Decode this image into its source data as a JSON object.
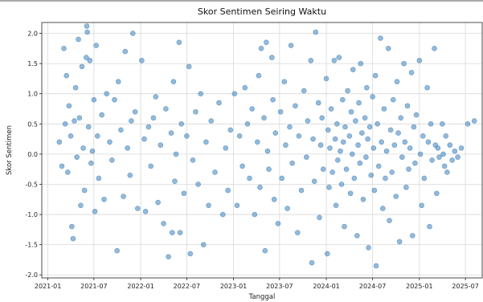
{
  "chart_data": {
    "type": "scatter",
    "title": "Skor Sentimen Seiring Waktu",
    "xlabel": "Tanggal",
    "ylabel": "Skor Sentimen",
    "xlim": [
      "2020-12-08",
      "2025-09-05"
    ],
    "ylim": [
      -2.05,
      2.18
    ],
    "x_ticks": [
      "2021-01",
      "2021-07",
      "2022-01",
      "2022-07",
      "2023-01",
      "2023-07",
      "2024-01",
      "2024-07",
      "2025-01",
      "2025-07"
    ],
    "y_ticks": [
      -2.0,
      -1.5,
      -1.0,
      -0.5,
      0.0,
      0.5,
      1.0,
      1.5,
      2.0
    ],
    "grid": true,
    "marker_color": "#4a8cc4",
    "frame_color": "#222222",
    "points": [
      [
        "2021-02-15",
        0.2
      ],
      [
        "2021-02-25",
        -0.2
      ],
      [
        "2021-03-05",
        1.75
      ],
      [
        "2021-03-10",
        0.5
      ],
      [
        "2021-03-15",
        1.3
      ],
      [
        "2021-03-20",
        -0.3
      ],
      [
        "2021-03-25",
        0.8
      ],
      [
        "2021-04-01",
        0.3
      ],
      [
        "2021-04-05",
        -1.2
      ],
      [
        "2021-04-10",
        -1.4
      ],
      [
        "2021-04-15",
        0.55
      ],
      [
        "2021-04-20",
        1.1
      ],
      [
        "2021-04-25",
        -0.05
      ],
      [
        "2021-05-01",
        1.9
      ],
      [
        "2021-05-05",
        0.6
      ],
      [
        "2021-05-10",
        -0.85
      ],
      [
        "2021-05-15",
        1.45
      ],
      [
        "2021-05-20",
        0.1
      ],
      [
        "2021-05-25",
        -0.6
      ],
      [
        "2021-06-01",
        1.6
      ],
      [
        "2021-06-03",
        2.12
      ],
      [
        "2021-06-05",
        2.02
      ],
      [
        "2021-06-10",
        0.45
      ],
      [
        "2021-06-15",
        1.55
      ],
      [
        "2021-06-20",
        -0.15
      ],
      [
        "2021-06-25",
        0.05
      ],
      [
        "2021-07-01",
        0.9
      ],
      [
        "2021-07-05",
        -0.95
      ],
      [
        "2021-07-10",
        1.8
      ],
      [
        "2021-07-15",
        0.3
      ],
      [
        "2021-07-20",
        -0.4
      ],
      [
        "2021-08-01",
        0.65
      ],
      [
        "2021-08-10",
        -0.75
      ],
      [
        "2021-08-20",
        1.0
      ],
      [
        "2021-09-01",
        0.2
      ],
      [
        "2021-09-10",
        -0.1
      ],
      [
        "2021-09-20",
        0.9
      ],
      [
        "2021-09-30",
        -1.6
      ],
      [
        "2021-10-05",
        1.2
      ],
      [
        "2021-10-15",
        0.4
      ],
      [
        "2021-10-25",
        -0.7
      ],
      [
        "2021-11-01",
        1.7
      ],
      [
        "2021-11-10",
        0.1
      ],
      [
        "2021-11-20",
        -0.35
      ],
      [
        "2021-11-25",
        0.55
      ],
      [
        "2021-12-01",
        2.0
      ],
      [
        "2021-12-10",
        0.7
      ],
      [
        "2021-12-20",
        -0.9
      ],
      [
        "2022-01-05",
        1.55
      ],
      [
        "2022-01-15",
        0.25
      ],
      [
        "2022-01-20",
        -0.95
      ],
      [
        "2022-02-01",
        0.45
      ],
      [
        "2022-02-10",
        -0.2
      ],
      [
        "2022-02-20",
        0.6
      ],
      [
        "2022-03-01",
        0.95
      ],
      [
        "2022-03-10",
        -0.8
      ],
      [
        "2022-03-20",
        0.15
      ],
      [
        "2022-04-01",
        -1.15
      ],
      [
        "2022-04-10",
        0.75
      ],
      [
        "2022-04-20",
        -1.7
      ],
      [
        "2022-05-01",
        0.35
      ],
      [
        "2022-05-05",
        -1.3
      ],
      [
        "2022-05-10",
        1.2
      ],
      [
        "2022-05-15",
        -0.45
      ],
      [
        "2022-05-20",
        0.0
      ],
      [
        "2022-06-01",
        1.85
      ],
      [
        "2022-06-05",
        -1.3
      ],
      [
        "2022-06-10",
        0.5
      ],
      [
        "2022-06-20",
        -0.65
      ],
      [
        "2022-07-01",
        0.3
      ],
      [
        "2022-07-10",
        1.45
      ],
      [
        "2022-07-15",
        -1.65
      ],
      [
        "2022-07-25",
        -0.1
      ],
      [
        "2022-08-05",
        0.7
      ],
      [
        "2022-08-15",
        -0.5
      ],
      [
        "2022-08-25",
        1.0
      ],
      [
        "2022-09-05",
        -1.5
      ],
      [
        "2022-09-15",
        0.2
      ],
      [
        "2022-09-25",
        -0.85
      ],
      [
        "2022-10-05",
        0.55
      ],
      [
        "2022-10-20",
        -0.3
      ],
      [
        "2022-11-05",
        0.85
      ],
      [
        "2022-11-20",
        -1.0
      ],
      [
        "2022-12-01",
        0.1
      ],
      [
        "2022-12-10",
        -0.6
      ],
      [
        "2022-12-20",
        0.4
      ],
      [
        "2023-01-05",
        1.0
      ],
      [
        "2023-01-15",
        -0.85
      ],
      [
        "2023-01-25",
        0.3
      ],
      [
        "2023-02-05",
        -0.2
      ],
      [
        "2023-02-15",
        1.1
      ],
      [
        "2023-02-25",
        0.5
      ],
      [
        "2023-03-05",
        -0.4
      ],
      [
        "2023-03-15",
        0.75
      ],
      [
        "2023-03-25",
        -1.0
      ],
      [
        "2023-04-05",
        0.2
      ],
      [
        "2023-04-10",
        1.3
      ],
      [
        "2023-04-15",
        -0.55
      ],
      [
        "2023-04-20",
        1.75
      ],
      [
        "2023-05-01",
        0.6
      ],
      [
        "2023-05-05",
        -1.6
      ],
      [
        "2023-05-10",
        1.85
      ],
      [
        "2023-05-15",
        0.05
      ],
      [
        "2023-05-20",
        -0.25
      ],
      [
        "2023-06-01",
        1.6
      ],
      [
        "2023-06-05",
        0.9
      ],
      [
        "2023-06-10",
        -0.75
      ],
      [
        "2023-06-15",
        0.35
      ],
      [
        "2023-06-25",
        -1.15
      ],
      [
        "2023-07-05",
        0.7
      ],
      [
        "2023-07-10",
        -0.4
      ],
      [
        "2023-07-20",
        1.2
      ],
      [
        "2023-07-25",
        0.15
      ],
      [
        "2023-08-01",
        -0.9
      ],
      [
        "2023-08-10",
        0.45
      ],
      [
        "2023-08-15",
        1.8
      ],
      [
        "2023-08-20",
        -0.15
      ],
      [
        "2023-09-01",
        0.8
      ],
      [
        "2023-09-10",
        -1.3
      ],
      [
        "2023-09-15",
        0.3
      ],
      [
        "2023-09-25",
        -0.6
      ],
      [
        "2023-10-05",
        1.05
      ],
      [
        "2023-10-15",
        -0.05
      ],
      [
        "2023-10-20",
        0.55
      ],
      [
        "2023-11-01",
        1.55
      ],
      [
        "2023-11-05",
        -1.8
      ],
      [
        "2023-11-10",
        0.25
      ],
      [
        "2023-11-15",
        -0.45
      ],
      [
        "2023-11-20",
        2.02
      ],
      [
        "2023-12-01",
        0.85
      ],
      [
        "2023-12-05",
        -1.05
      ],
      [
        "2023-12-10",
        0.15
      ],
      [
        "2023-12-15",
        0.6
      ],
      [
        "2023-12-20",
        -0.25
      ],
      [
        "2024-01-01",
        1.25
      ],
      [
        "2024-01-05",
        -1.65
      ],
      [
        "2024-01-08",
        0.4
      ],
      [
        "2024-01-12",
        -0.55
      ],
      [
        "2024-01-15",
        0.1
      ],
      [
        "2024-01-20",
        0.75
      ],
      [
        "2024-01-25",
        -0.3
      ],
      [
        "2024-02-01",
        1.55
      ],
      [
        "2024-02-05",
        0.25
      ],
      [
        "2024-02-08",
        -0.85
      ],
      [
        "2024-02-12",
        0.5
      ],
      [
        "2024-02-15",
        -0.1
      ],
      [
        "2024-02-20",
        1.6
      ],
      [
        "2024-02-25",
        0.05
      ],
      [
        "2024-03-01",
        -0.5
      ],
      [
        "2024-03-05",
        0.9
      ],
      [
        "2024-03-08",
        0.2
      ],
      [
        "2024-03-12",
        -1.2
      ],
      [
        "2024-03-15",
        0.45
      ],
      [
        "2024-03-20",
        -0.25
      ],
      [
        "2024-03-25",
        1.05
      ],
      [
        "2024-04-01",
        0.3
      ],
      [
        "2024-04-05",
        -0.65
      ],
      [
        "2024-04-08",
        0.7
      ],
      [
        "2024-04-12",
        0.0
      ],
      [
        "2024-04-15",
        1.4
      ],
      [
        "2024-04-20",
        -0.4
      ],
      [
        "2024-04-25",
        0.55
      ],
      [
        "2024-05-01",
        -1.35
      ],
      [
        "2024-05-05",
        0.15
      ],
      [
        "2024-05-08",
        0.85
      ],
      [
        "2024-05-12",
        -0.15
      ],
      [
        "2024-05-15",
        1.5
      ],
      [
        "2024-05-20",
        0.35
      ],
      [
        "2024-05-25",
        -0.75
      ],
      [
        "2024-06-01",
        0.6
      ],
      [
        "2024-06-05",
        -0.05
      ],
      [
        "2024-06-08",
        1.1
      ],
      [
        "2024-06-12",
        0.25
      ],
      [
        "2024-06-15",
        -1.55
      ],
      [
        "2024-06-20",
        0.45
      ],
      [
        "2024-06-25",
        -0.35
      ],
      [
        "2024-07-01",
        0.95
      ],
      [
        "2024-07-05",
        0.1
      ],
      [
        "2024-07-08",
        -0.6
      ],
      [
        "2024-07-12",
        1.3
      ],
      [
        "2024-07-15",
        -1.85
      ],
      [
        "2024-07-20",
        0.5
      ],
      [
        "2024-07-25",
        -0.2
      ],
      [
        "2024-08-01",
        1.92
      ],
      [
        "2024-08-05",
        0.2
      ],
      [
        "2024-08-10",
        -0.9
      ],
      [
        "2024-08-15",
        0.75
      ],
      [
        "2024-08-20",
        -0.4
      ],
      [
        "2024-08-25",
        0.05
      ],
      [
        "2024-09-01",
        1.75
      ],
      [
        "2024-09-05",
        -1.1
      ],
      [
        "2024-09-10",
        0.4
      ],
      [
        "2024-09-15",
        -0.3
      ],
      [
        "2024-09-20",
        0.9
      ],
      [
        "2024-09-25",
        0.15
      ],
      [
        "2024-10-01",
        -0.7
      ],
      [
        "2024-10-05",
        1.2
      ],
      [
        "2024-10-10",
        0.35
      ],
      [
        "2024-10-15",
        -1.45
      ],
      [
        "2024-10-20",
        0.6
      ],
      [
        "2024-10-25",
        -0.05
      ],
      [
        "2024-11-01",
        1.5
      ],
      [
        "2024-11-05",
        0.2
      ],
      [
        "2024-11-10",
        -0.55
      ],
      [
        "2024-11-15",
        0.8
      ],
      [
        "2024-11-20",
        -0.25
      ],
      [
        "2024-11-25",
        0.1
      ],
      [
        "2024-12-01",
        1.35
      ],
      [
        "2024-12-05",
        -1.35
      ],
      [
        "2024-12-10",
        0.45
      ],
      [
        "2024-12-15",
        -0.15
      ],
      [
        "2024-12-20",
        0.65
      ],
      [
        "2025-01-01",
        1.55
      ],
      [
        "2025-01-05",
        0.0
      ],
      [
        "2025-01-10",
        -0.85
      ],
      [
        "2025-01-15",
        0.3
      ],
      [
        "2025-01-20",
        -0.4
      ],
      [
        "2025-02-01",
        1.1
      ],
      [
        "2025-02-05",
        0.2
      ],
      [
        "2025-02-10",
        -1.2
      ],
      [
        "2025-02-15",
        0.5
      ],
      [
        "2025-02-20",
        -0.1
      ],
      [
        "2025-03-01",
        1.75
      ],
      [
        "2025-03-05",
        0.15
      ],
      [
        "2025-03-10",
        -0.65
      ],
      [
        "2025-03-15",
        0.1
      ],
      [
        "2025-03-20",
        -0.05
      ],
      [
        "2025-04-01",
        0.5
      ],
      [
        "2025-04-05",
        0.0
      ],
      [
        "2025-04-10",
        -0.2
      ],
      [
        "2025-04-15",
        0.3
      ],
      [
        "2025-04-20",
        -0.3
      ],
      [
        "2025-05-01",
        0.15
      ],
      [
        "2025-05-10",
        -0.1
      ],
      [
        "2025-05-20",
        0.05
      ],
      [
        "2025-06-01",
        -0.05
      ],
      [
        "2025-06-15",
        0.1
      ],
      [
        "2025-07-10",
        0.5
      ],
      [
        "2025-08-05",
        0.55
      ]
    ]
  }
}
